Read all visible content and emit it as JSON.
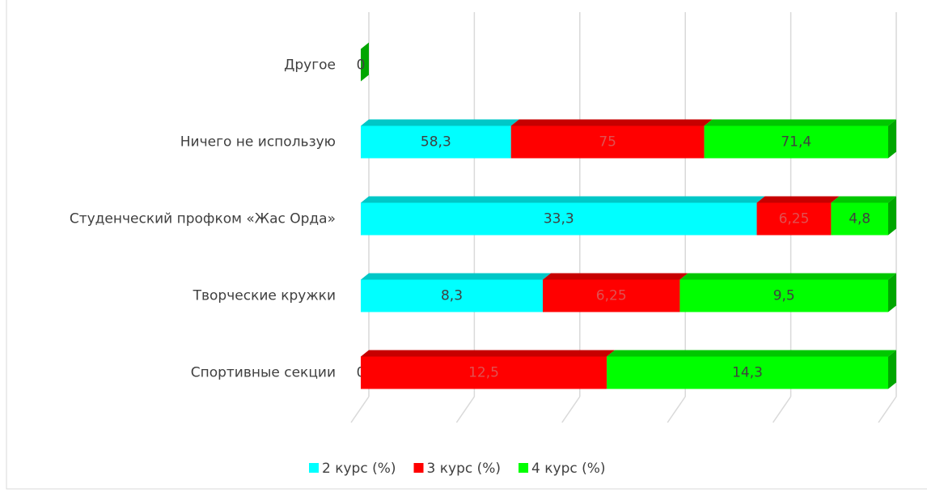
{
  "chart_data": {
    "type": "bar-stacked-100-horizontal",
    "categories": [
      "Другое",
      "Ничего не использую",
      "Студенческий профком «Жас Орда»",
      "Творческие кружки",
      "Спортивные секции"
    ],
    "series": [
      {
        "name": "2 курс (%)",
        "color": "#00ffff",
        "values": [
          null,
          58.3,
          33.3,
          8.3,
          0
        ],
        "value_labels": [
          null,
          "58,3",
          "33,3",
          "8,3",
          "0"
        ]
      },
      {
        "name": "3 курс (%)",
        "color": "#ff0000",
        "values": [
          null,
          75,
          6.25,
          6.25,
          12.5
        ],
        "value_labels": [
          null,
          "75",
          "6,25",
          "6,25",
          "12,5"
        ]
      },
      {
        "name": "4 курс (%)",
        "color": "#00ff00",
        "values": [
          0,
          71.4,
          4.8,
          9.5,
          14.3
        ],
        "value_labels": [
          "0",
          "71,4",
          "4,8",
          "9,5",
          "14,3"
        ]
      }
    ],
    "xlim": [
      0,
      100
    ],
    "xticks": [
      0,
      20,
      40,
      60,
      80,
      100
    ],
    "grid": true,
    "legend": "bottom"
  }
}
